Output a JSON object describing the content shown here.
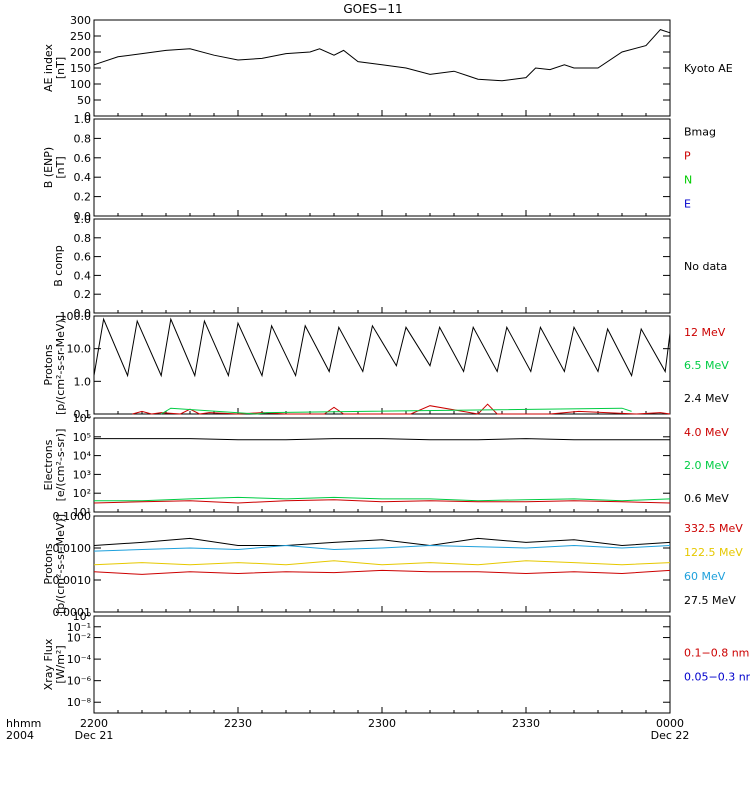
{
  "title": "GOES−11",
  "time_axis": {
    "row_label_1": "hhmm",
    "row_label_2": "2004",
    "ticks": [
      {
        "t": 0,
        "label": "2200",
        "date": "Dec 21"
      },
      {
        "t": 30,
        "label": "2230",
        "date": ""
      },
      {
        "t": 60,
        "label": "2300",
        "date": ""
      },
      {
        "t": 90,
        "label": "2330",
        "date": ""
      },
      {
        "t": 120,
        "label": "0000",
        "date": "Dec 22"
      }
    ],
    "range_minutes": [
      0,
      120
    ]
  },
  "panels": [
    {
      "id": "ae",
      "ylabel": [
        "AE index",
        "[nT]"
      ],
      "scale": "linear",
      "ylim": [
        0,
        300
      ],
      "ticks": [
        "0",
        "50",
        "100",
        "150",
        "200",
        "250",
        "300"
      ],
      "legend": [
        {
          "text": "Kyoto AE",
          "color": "#000000"
        }
      ]
    },
    {
      "id": "bfield",
      "ylabel": [
        "B (ENP)",
        "[nT]"
      ],
      "scale": "linear",
      "ylim": [
        0,
        1
      ],
      "ticks": [
        "0.0",
        "0.2",
        "0.4",
        "0.6",
        "0.8",
        "1.0"
      ],
      "legend": [
        {
          "text": "Bmag",
          "color": "#000000"
        },
        {
          "text": "P",
          "color": "#cc0000"
        },
        {
          "text": "N",
          "color": "#00cc00"
        },
        {
          "text": "E",
          "color": "#0000cc"
        }
      ]
    },
    {
      "id": "bcomp",
      "ylabel": [
        "B comp",
        ""
      ],
      "scale": "linear",
      "ylim": [
        0,
        1
      ],
      "ticks": [
        "0.0",
        "0.2",
        "0.4",
        "0.6",
        "0.8",
        "1.0"
      ],
      "legend": [
        {
          "text": "No data",
          "color": "#000000"
        }
      ]
    },
    {
      "id": "protons_hi",
      "ylabel": [
        "Protons",
        "[p/(cm²-s-sr-MeV)]"
      ],
      "scale": "log",
      "ylim": [
        0.1,
        100
      ],
      "ticks": [
        "0.1",
        "1.0",
        "10.0",
        "100.0"
      ],
      "legend": [
        {
          "text": "12 MeV",
          "color": "#cc0000"
        },
        {
          "text": "6.5 MeV",
          "color": "#00cc44"
        },
        {
          "text": "2.4 MeV",
          "color": "#000000"
        }
      ]
    },
    {
      "id": "electrons",
      "ylabel": [
        "Electrons",
        "[e/(cm²-s-sr)]"
      ],
      "scale": "log",
      "ylim": [
        10,
        1000000
      ],
      "ticks": [
        "10¹",
        "10²",
        "10³",
        "10⁴",
        "10⁵",
        "10⁶"
      ],
      "legend": [
        {
          "text": "4.0 MeV",
          "color": "#cc0000"
        },
        {
          "text": "2.0 MeV",
          "color": "#00cc44"
        },
        {
          "text": "0.6 MeV",
          "color": "#000000"
        }
      ]
    },
    {
      "id": "protons_lo",
      "ylabel": [
        "Protons",
        "[p/(cm²-s-sr-MeV)]"
      ],
      "scale": "log",
      "ylim": [
        0.0001,
        0.1
      ],
      "ticks": [
        "0.0001",
        "0.0010",
        "0.0100",
        "0.1000"
      ],
      "legend": [
        {
          "text": "332.5 MeV",
          "color": "#cc0000"
        },
        {
          "text": "122.5 MeV",
          "color": "#e6c800"
        },
        {
          "text": "60 MeV",
          "color": "#1ea0dc"
        },
        {
          "text": "27.5 MeV",
          "color": "#000000"
        }
      ]
    },
    {
      "id": "xray",
      "ylabel": [
        "Xray  Flux",
        "[W/m²]"
      ],
      "scale": "log",
      "ylim": [
        1e-09,
        1
      ],
      "ticks": [
        "10⁻⁸",
        "10⁻⁶",
        "10⁻⁴",
        "10⁻²",
        "10⁻¹",
        "10⁰"
      ],
      "tick_values": [
        -8,
        -6,
        -4,
        -2,
        -1,
        0
      ],
      "legend": [
        {
          "text": "0.1−0.8 nm",
          "color": "#cc0000"
        },
        {
          "text": "0.05−0.3 nm",
          "color": "#0000cc"
        }
      ]
    }
  ],
  "chart_data": {
    "type": "line",
    "title": "GOES−11",
    "x_units": "minutes after 2200 UT, Dec 21 2004",
    "series": [
      {
        "panel": "ae",
        "name": "Kyoto AE",
        "color": "#000000",
        "x": [
          0,
          5,
          10,
          15,
          20,
          25,
          30,
          35,
          40,
          45,
          47,
          50,
          52,
          55,
          60,
          65,
          70,
          75,
          78,
          80,
          85,
          90,
          92,
          95,
          98,
          100,
          105,
          110,
          115,
          118,
          120
        ],
        "y": [
          160,
          185,
          195,
          205,
          210,
          190,
          175,
          180,
          195,
          200,
          210,
          190,
          205,
          170,
          160,
          150,
          130,
          140,
          125,
          115,
          110,
          120,
          150,
          145,
          160,
          150,
          150,
          200,
          220,
          270,
          260
        ]
      },
      {
        "panel": "protons_hi",
        "name": "2.4 MeV",
        "color": "#000000",
        "x": [
          0,
          2,
          7,
          9,
          14,
          16,
          21,
          23,
          28,
          30,
          35,
          37,
          42,
          44,
          49,
          51,
          56,
          58,
          63,
          65,
          70,
          72,
          77,
          79,
          84,
          86,
          91,
          93,
          98,
          100,
          105,
          107,
          112,
          114,
          119,
          120
        ],
        "y": [
          1.5,
          80,
          1.5,
          70,
          1.5,
          80,
          1.5,
          70,
          1.5,
          60,
          1.5,
          50,
          1.5,
          50,
          2,
          45,
          2,
          50,
          3,
          45,
          3,
          45,
          2,
          45,
          2,
          45,
          2,
          45,
          2,
          45,
          2,
          40,
          1.5,
          40,
          2,
          30
        ]
      },
      {
        "panel": "protons_hi",
        "name": "12 MeV",
        "color": "#cc0000",
        "x": [
          8,
          10,
          12,
          14,
          18,
          20,
          22,
          24,
          30,
          35,
          40,
          48,
          50,
          52,
          66,
          70,
          80,
          82,
          84,
          95,
          101,
          113,
          118,
          120
        ],
        "y": [
          0.1,
          0.12,
          0.1,
          0.11,
          0.1,
          0.14,
          0.1,
          0.11,
          0.1,
          0.11,
          0.1,
          0.1,
          0.16,
          0.1,
          0.1,
          0.18,
          0.1,
          0.2,
          0.1,
          0.1,
          0.12,
          0.1,
          0.11,
          0.1
        ]
      },
      {
        "panel": "protons_hi",
        "name": "6.5 MeV",
        "color": "#00cc44",
        "x": [
          14,
          16,
          34,
          36,
          110,
          112
        ],
        "y": [
          0.1,
          0.15,
          0.1,
          0.11,
          0.15,
          0.12
        ]
      },
      {
        "panel": "electrons",
        "name": "0.6 MeV",
        "color": "#000000",
        "x": [
          0,
          10,
          20,
          30,
          40,
          50,
          60,
          70,
          80,
          90,
          100,
          110,
          120
        ],
        "y": [
          80000,
          80000,
          80000,
          70000,
          70000,
          80000,
          80000,
          70000,
          70000,
          80000,
          70000,
          70000,
          70000
        ]
      },
      {
        "panel": "electrons",
        "name": "2.0 MeV",
        "color": "#00cc44",
        "x": [
          0,
          10,
          20,
          30,
          40,
          50,
          60,
          70,
          80,
          90,
          100,
          110,
          120
        ],
        "y": [
          40,
          40,
          50,
          60,
          50,
          60,
          50,
          50,
          40,
          45,
          50,
          40,
          50
        ]
      },
      {
        "panel": "electrons",
        "name": "4.0 MeV",
        "color": "#cc0000",
        "x": [
          0,
          10,
          20,
          30,
          40,
          50,
          60,
          70,
          80,
          90,
          100,
          110,
          120
        ],
        "y": [
          30,
          35,
          40,
          30,
          40,
          45,
          35,
          40,
          35,
          35,
          40,
          35,
          30
        ]
      },
      {
        "panel": "protons_lo",
        "name": "27.5 MeV",
        "color": "#000000",
        "x": [
          0,
          10,
          20,
          30,
          40,
          50,
          60,
          70,
          80,
          90,
          100,
          110,
          120
        ],
        "y": [
          0.012,
          0.015,
          0.02,
          0.012,
          0.012,
          0.015,
          0.018,
          0.012,
          0.02,
          0.015,
          0.018,
          0.012,
          0.015
        ]
      },
      {
        "panel": "protons_lo",
        "name": "60 MeV",
        "color": "#1ea0dc",
        "x": [
          0,
          10,
          20,
          30,
          40,
          50,
          60,
          70,
          80,
          90,
          100,
          110,
          120
        ],
        "y": [
          0.008,
          0.009,
          0.01,
          0.009,
          0.012,
          0.009,
          0.01,
          0.012,
          0.011,
          0.01,
          0.012,
          0.01,
          0.012
        ]
      },
      {
        "panel": "protons_lo",
        "name": "122.5 MeV",
        "color": "#e6c800",
        "x": [
          0,
          10,
          20,
          30,
          40,
          50,
          60,
          70,
          80,
          90,
          100,
          110,
          120
        ],
        "y": [
          0.003,
          0.0035,
          0.003,
          0.0035,
          0.003,
          0.004,
          0.003,
          0.0035,
          0.003,
          0.004,
          0.0035,
          0.003,
          0.0035
        ]
      },
      {
        "panel": "protons_lo",
        "name": "332.5 MeV",
        "color": "#cc0000",
        "x": [
          0,
          10,
          20,
          30,
          40,
          50,
          60,
          70,
          80,
          90,
          100,
          110,
          120
        ],
        "y": [
          0.0018,
          0.0015,
          0.0018,
          0.0016,
          0.0018,
          0.0017,
          0.002,
          0.0018,
          0.0018,
          0.0016,
          0.0018,
          0.0016,
          0.002
        ]
      }
    ]
  }
}
